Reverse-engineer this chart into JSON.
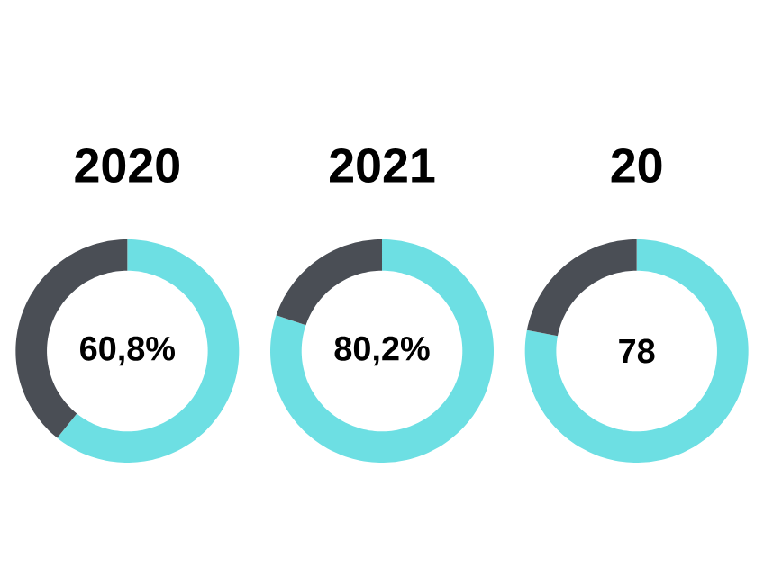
{
  "chart_data": [
    {
      "type": "donut",
      "title": "2020",
      "categories": [
        null,
        null
      ],
      "values": [
        60.8,
        39.2
      ],
      "colors": [
        "#6ddfe3",
        "#4a4e55"
      ],
      "value_labels": [
        "60,8%",
        null
      ]
    },
    {
      "type": "donut",
      "title": "2021",
      "categories": [
        null,
        null
      ],
      "values": [
        80.2,
        19.8
      ],
      "colors": [
        "#6ddfe3",
        "#4a4e55"
      ],
      "value_labels": [
        "80,2%",
        null
      ]
    },
    {
      "type": "donut",
      "title": "20",
      "categories": [
        null,
        null
      ],
      "values": [
        78,
        22
      ],
      "colors": [
        "#6ddfe3",
        "#4a4e55"
      ],
      "value_labels": [
        "78",
        null
      ]
    }
  ]
}
